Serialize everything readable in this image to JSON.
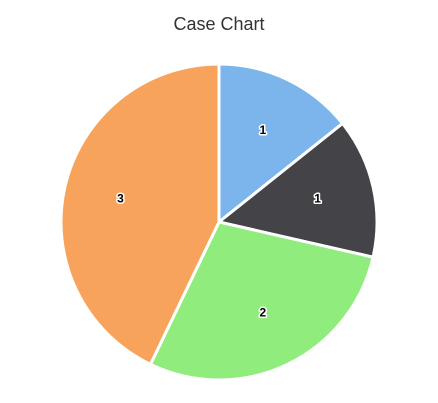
{
  "chart_data": {
    "type": "pie",
    "title": "Case Chart",
    "values": [
      1,
      1,
      2,
      3
    ],
    "colors": [
      "#7cb5ec",
      "#434348",
      "#90ed7d",
      "#f7a35c"
    ]
  }
}
